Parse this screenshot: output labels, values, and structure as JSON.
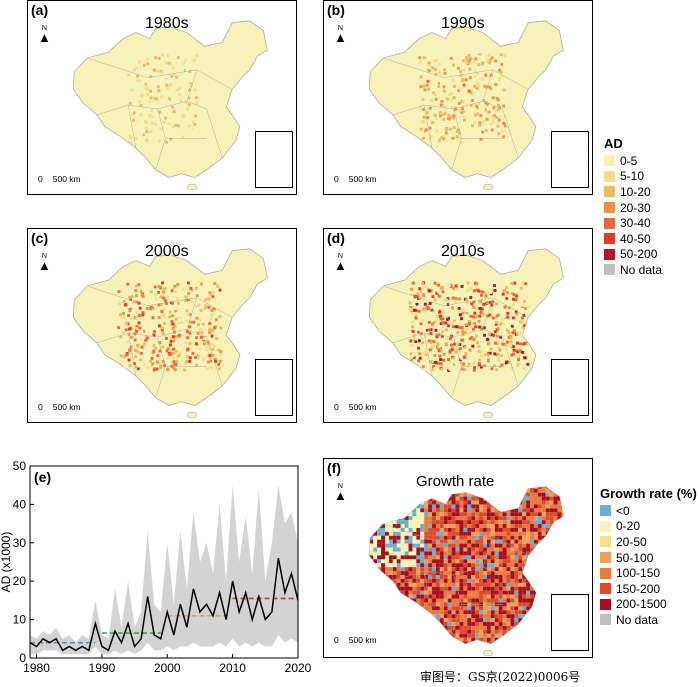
{
  "colors": {
    "land_base": "#f7f3b8",
    "border": "#a9a9a9",
    "inset_island": "#c9c9c9",
    "trend_1980s": "#4a90c8",
    "trend_1990s": "#3aa64a",
    "trend_2000s": "#e09a3c",
    "trend_2010s": "#d93025",
    "series_line": "#000000",
    "band": "#d3d3d3"
  },
  "panels": [
    {
      "label": "(a)",
      "title": "1980s",
      "north": "N",
      "scale_zero": "0",
      "scale_text": "500 km",
      "intensity": 1
    },
    {
      "label": "(b)",
      "title": "1990s",
      "north": "N",
      "scale_zero": "0",
      "scale_text": "500 km",
      "intensity": 2
    },
    {
      "label": "(c)",
      "title": "2000s",
      "north": "N",
      "scale_zero": "0",
      "scale_text": "500 km",
      "intensity": 3
    },
    {
      "label": "(d)",
      "title": "2010s",
      "north": "N",
      "scale_zero": "0",
      "scale_text": "500 km",
      "intensity": 4
    },
    {
      "label": "(f)",
      "title": "Growth rate",
      "north": "N",
      "scale_zero": "0",
      "scale_text": "500 km",
      "intensity": 0
    }
  ],
  "legend_ad": {
    "title": "AD",
    "items": [
      {
        "label": "0-5",
        "color": "#f7f3b8"
      },
      {
        "label": "5-10",
        "color": "#f3dd8d"
      },
      {
        "label": "10-20",
        "color": "#eeb764"
      },
      {
        "label": "20-30",
        "color": "#ec9347"
      },
      {
        "label": "30-40",
        "color": "#e86a3c"
      },
      {
        "label": "40-50",
        "color": "#dc3a2a"
      },
      {
        "label": "50-200",
        "color": "#b2182b"
      },
      {
        "label": "No data",
        "color": "#bfbfbf"
      }
    ]
  },
  "legend_growth": {
    "title": "Growth rate (%)",
    "items": [
      {
        "label": "<0",
        "color": "#6aaed6"
      },
      {
        "label": "0-20",
        "color": "#f7f3b8"
      },
      {
        "label": "20-50",
        "color": "#f2df8e"
      },
      {
        "label": "50-100",
        "color": "#eba25c"
      },
      {
        "label": "100-150",
        "color": "#e97a44"
      },
      {
        "label": "150-200",
        "color": "#dc4a30"
      },
      {
        "label": "200-1500",
        "color": "#a50f22"
      },
      {
        "label": "No data",
        "color": "#bfbfbf"
      }
    ]
  },
  "chart_data": {
    "type": "line",
    "label": "(e)",
    "ylabel": "AD (x1000)",
    "xlim": [
      1979,
      2020
    ],
    "ylim": [
      0,
      50
    ],
    "xticks": [
      "1980",
      "1990",
      "2000",
      "2010",
      "2020"
    ],
    "yticks": [
      "0",
      "10",
      "20",
      "30",
      "40",
      "50"
    ],
    "x": [
      1979,
      1980,
      1981,
      1982,
      1983,
      1984,
      1985,
      1986,
      1987,
      1988,
      1989,
      1990,
      1991,
      1992,
      1993,
      1994,
      1995,
      1996,
      1997,
      1998,
      1999,
      2000,
      2001,
      2002,
      2003,
      2004,
      2005,
      2006,
      2007,
      2008,
      2009,
      2010,
      2011,
      2012,
      2013,
      2014,
      2015,
      2016,
      2017,
      2018,
      2019,
      2020
    ],
    "series": [
      {
        "values": [
          4,
          3,
          5,
          4,
          5,
          2,
          3,
          2,
          3,
          2,
          9,
          3,
          2,
          7,
          4,
          9,
          3,
          5,
          16,
          6,
          5,
          12,
          6,
          14,
          8,
          18,
          12,
          14,
          11,
          17,
          10,
          20,
          12,
          17,
          10,
          16,
          10,
          12,
          26,
          17,
          22,
          15
        ]
      }
    ],
    "band_upper": [
      6,
      5,
      7,
      6,
      8,
      5,
      6,
      4,
      6,
      5,
      15,
      6,
      5,
      18,
      8,
      20,
      8,
      12,
      33,
      14,
      12,
      30,
      14,
      33,
      18,
      38,
      25,
      30,
      22,
      40,
      20,
      45,
      25,
      37,
      22,
      44,
      20,
      30,
      45,
      35,
      38,
      30
    ],
    "band_lower": [
      1,
      1,
      2,
      2,
      2,
      1,
      1,
      1,
      1,
      1,
      3,
      1,
      1,
      2,
      1,
      2,
      1,
      2,
      4,
      2,
      2,
      3,
      2,
      3,
      3,
      4,
      3,
      3,
      3,
      4,
      3,
      5,
      3,
      4,
      3,
      4,
      3,
      3,
      6,
      4,
      5,
      4
    ],
    "trends": [
      {
        "x": [
          1979,
          1989
        ],
        "y": [
          4.0,
          4.0
        ]
      },
      {
        "x": [
          1990,
          1999
        ],
        "y": [
          6.5,
          6.5
        ]
      },
      {
        "x": [
          2000,
          2009
        ],
        "y": [
          11.0,
          11.0
        ]
      },
      {
        "x": [
          2010,
          2020
        ],
        "y": [
          15.5,
          15.5
        ]
      }
    ]
  },
  "stamp": "审图号：GS京(2022)0006号"
}
